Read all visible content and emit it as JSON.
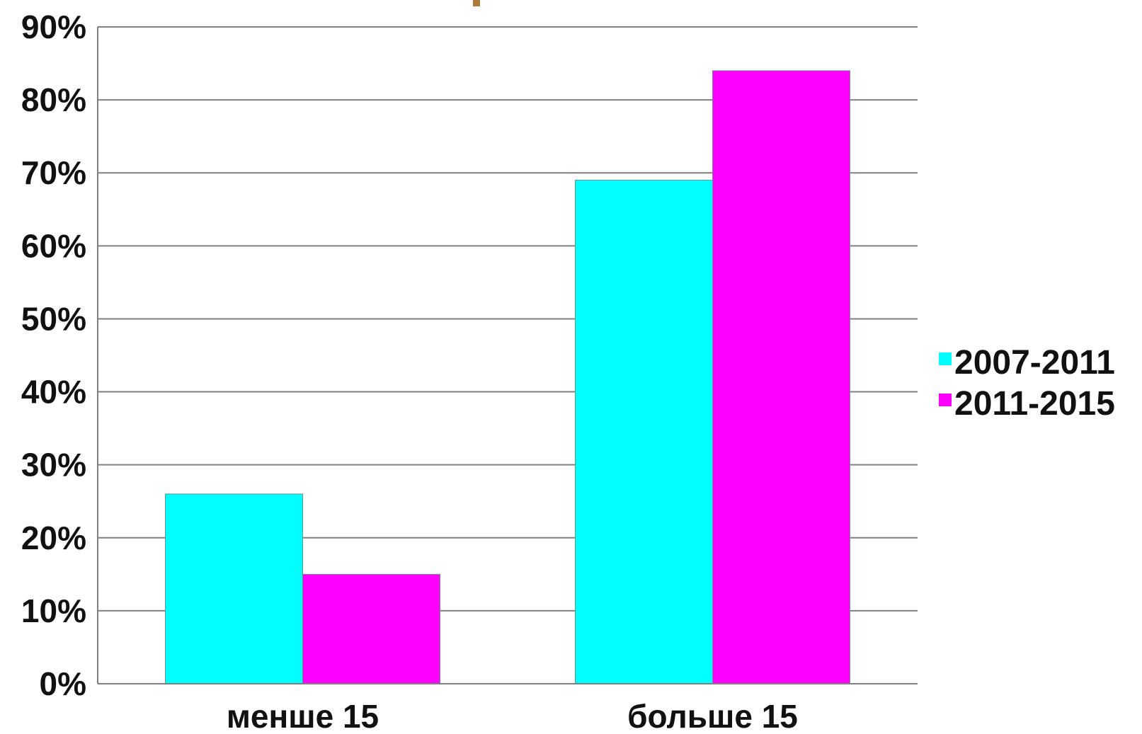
{
  "chart_data": {
    "type": "bar",
    "title": "",
    "xlabel": "",
    "ylabel": "",
    "categories": [
      "менше 15",
      "больше 15"
    ],
    "series": [
      {
        "name": "2007-2011",
        "color": "#00ffff",
        "values": [
          26,
          69
        ]
      },
      {
        "name": "2011-2015",
        "color": "#ff00ff",
        "values": [
          15,
          84
        ]
      }
    ],
    "ylim": [
      0,
      90
    ],
    "ytick_values": [
      0,
      10,
      20,
      30,
      40,
      50,
      60,
      70,
      80,
      90
    ],
    "ytick_labels": [
      "0%",
      "10%",
      "20%",
      "30%",
      "40%",
      "50%",
      "60%",
      "70%",
      "80%",
      "90%"
    ],
    "grid": true,
    "legend_position": "right",
    "colors": {
      "grid": "#808080",
      "axis": "#808080",
      "text": "#111111",
      "title_fragment": "#b07a3c"
    }
  }
}
